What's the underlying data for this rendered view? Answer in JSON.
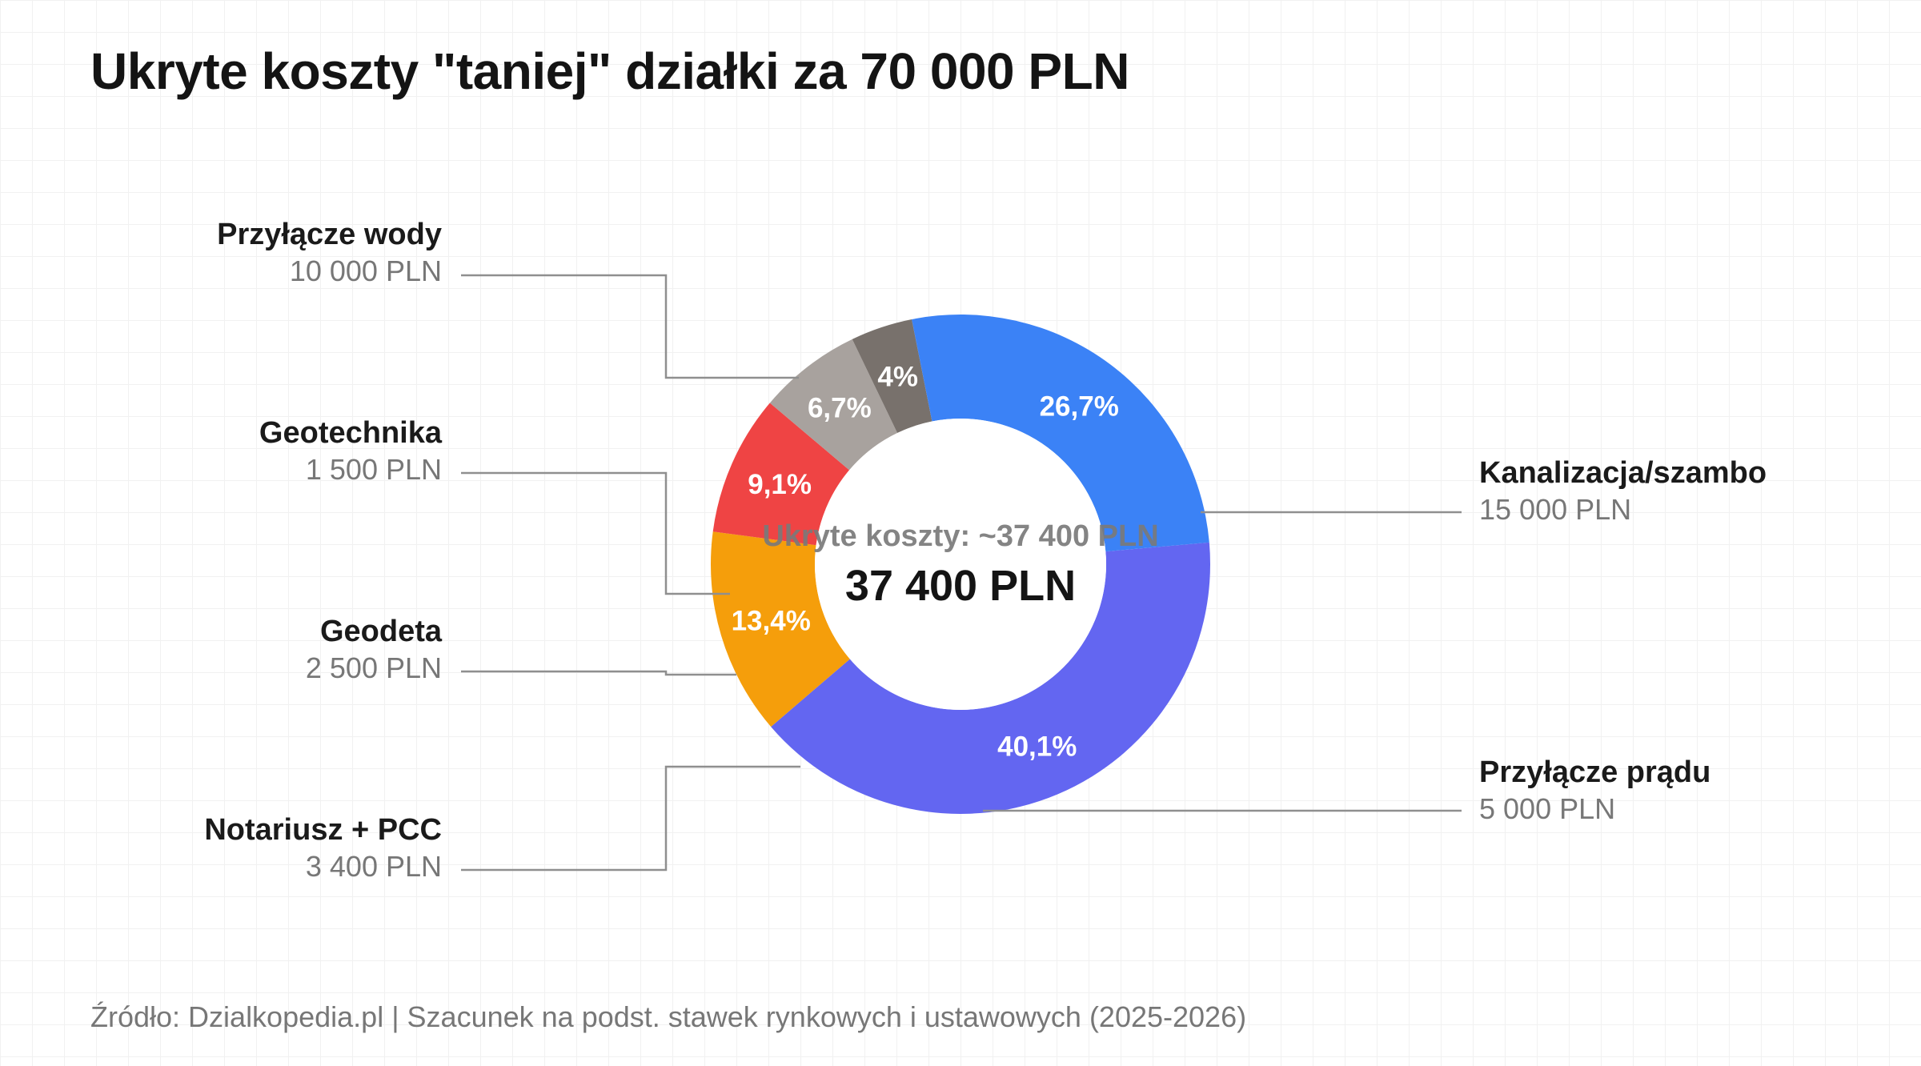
{
  "title": "Ukryte koszty \"taniej\" działki za 70 000 PLN",
  "source": "Źródło: Dzialkopedia.pl | Szacunek na podst. stawek rynkowych i ustawowych (2025-2026)",
  "chart_data": {
    "type": "pie",
    "variant": "donut",
    "title": "Ukryte koszty \"taniej\" działki za 70 000 PLN",
    "center_label": "Ukryte koszty: ~37 400 PLN",
    "center_value": "37 400 PLN",
    "total": 37400,
    "unit": "PLN",
    "slices": [
      {
        "label": "Kanalizacja/szambo",
        "value": 15000,
        "value_label": "15 000 PLN",
        "percent_label": "40,1%",
        "color": "#6366f1",
        "side": "right"
      },
      {
        "label": "Przyłącze prądu",
        "value": 5000,
        "value_label": "5 000 PLN",
        "percent_label": "13,4%",
        "color": "#f59e0b",
        "side": "right"
      },
      {
        "label": "Notariusz + PCC",
        "value": 3400,
        "value_label": "3 400 PLN",
        "percent_label": "9,1%",
        "color": "#ef4444",
        "side": "left"
      },
      {
        "label": "Geodeta",
        "value": 2500,
        "value_label": "2 500 PLN",
        "percent_label": "6,7%",
        "color": "#a8a29e",
        "side": "left"
      },
      {
        "label": "Geotechnika",
        "value": 1500,
        "value_label": "1 500 PLN",
        "percent_label": "4%",
        "color": "#78716c",
        "side": "left"
      },
      {
        "label": "Przyłącze wody",
        "value": 10000,
        "value_label": "10 000 PLN",
        "percent_label": "26,7%",
        "color": "#3b82f6",
        "side": "left"
      }
    ]
  }
}
